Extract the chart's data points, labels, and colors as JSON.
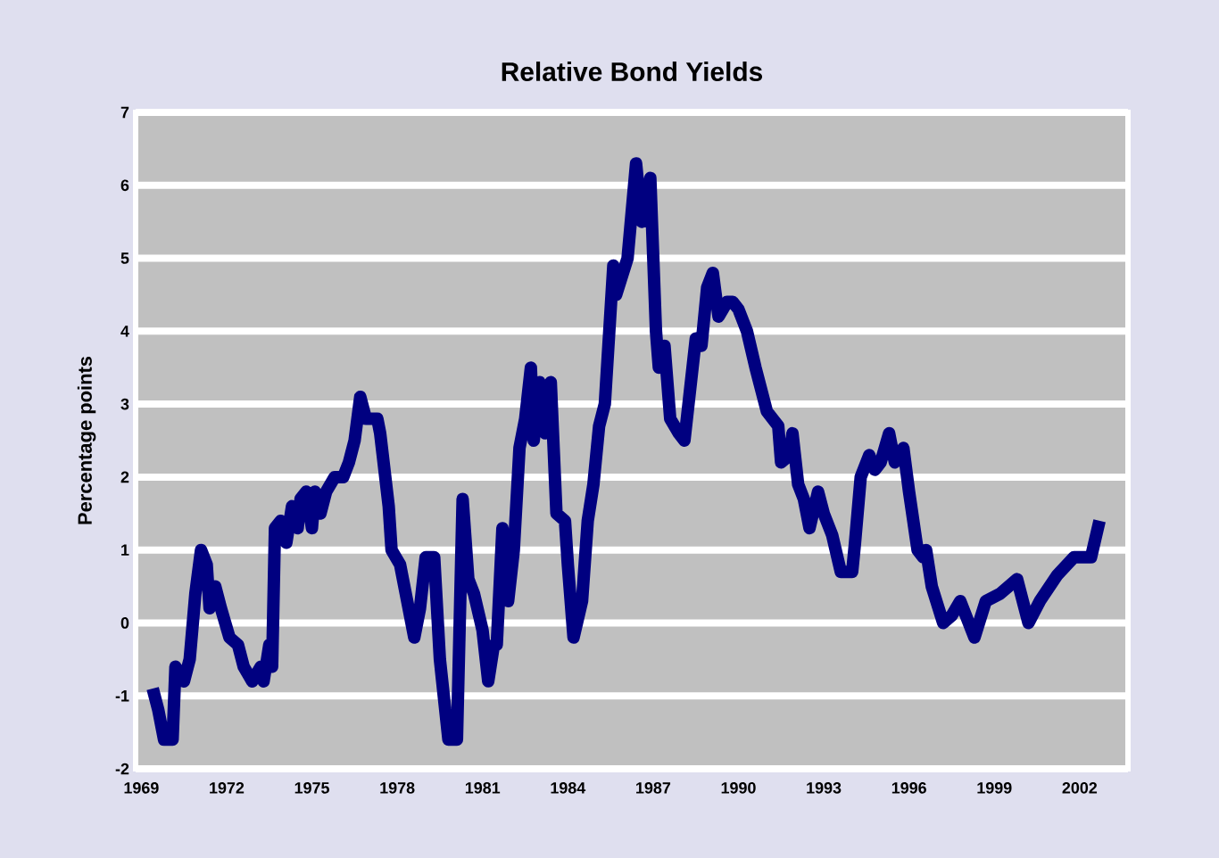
{
  "chart_data": {
    "type": "line",
    "title": "Relative Bond Yields",
    "ylabel": "Percentage points",
    "x": [
      1969.4,
      1969.6,
      1969.8,
      1970.1,
      1970.2,
      1970.5,
      1970.7,
      1970.9,
      1971.1,
      1971.3,
      1971.4,
      1971.6,
      1971.8,
      1972.1,
      1972.4,
      1972.6,
      1972.9,
      1973.2,
      1973.3,
      1973.5,
      1973.6,
      1973.7,
      1973.9,
      1974.1,
      1974.3,
      1974.5,
      1974.6,
      1974.8,
      1975.0,
      1975.1,
      1975.3,
      1975.5,
      1975.8,
      1976.1,
      1976.3,
      1976.5,
      1976.7,
      1976.9,
      1977.3,
      1977.4,
      1977.7,
      1977.8,
      1978.1,
      1978.3,
      1978.6,
      1978.8,
      1979.0,
      1979.3,
      1979.5,
      1979.8,
      1980.1,
      1980.3,
      1980.5,
      1980.7,
      1981.0,
      1981.2,
      1981.4,
      1981.5,
      1981.7,
      1981.9,
      1982.1,
      1982.3,
      1982.5,
      1982.7,
      1982.8,
      1983.0,
      1983.2,
      1983.4,
      1983.6,
      1983.9,
      1984.0,
      1984.2,
      1984.5,
      1984.7,
      1984.9,
      1985.1,
      1985.3,
      1985.6,
      1985.7,
      1986.1,
      1986.4,
      1986.6,
      1986.9,
      1987.1,
      1987.2,
      1987.4,
      1987.6,
      1987.9,
      1988.1,
      1988.3,
      1988.5,
      1988.7,
      1988.9,
      1989.1,
      1989.3,
      1989.6,
      1989.8,
      1990.0,
      1990.3,
      1990.6,
      1991.0,
      1991.4,
      1991.5,
      1991.8,
      1991.9,
      1992.1,
      1992.3,
      1992.5,
      1992.8,
      1993.0,
      1993.3,
      1993.6,
      1994.0,
      1994.1,
      1994.3,
      1994.6,
      1994.8,
      1995.0,
      1995.3,
      1995.5,
      1995.8,
      1996.0,
      1996.3,
      1996.5,
      1996.6,
      1996.8,
      1997.2,
      1997.5,
      1997.8,
      1998.3,
      1998.7,
      1999.2,
      1999.8,
      2000.2,
      2000.6,
      2001.2,
      2001.8,
      2002.4,
      2002.7
    ],
    "series": [
      {
        "color": "#000080",
        "values": [
          -0.9,
          -1.2,
          -1.6,
          -1.6,
          -0.6,
          -0.8,
          -0.5,
          0.4,
          1.0,
          0.8,
          0.2,
          0.5,
          0.2,
          -0.2,
          -0.3,
          -0.6,
          -0.8,
          -0.6,
          -0.8,
          -0.3,
          -0.6,
          1.3,
          1.4,
          1.1,
          1.6,
          1.3,
          1.7,
          1.8,
          1.3,
          1.8,
          1.5,
          1.8,
          2.0,
          2.0,
          2.2,
          2.5,
          3.1,
          2.8,
          2.8,
          2.6,
          1.6,
          1.0,
          0.8,
          0.4,
          -0.2,
          0.2,
          0.9,
          0.9,
          -0.5,
          -1.6,
          -1.6,
          1.7,
          0.6,
          0.4,
          -0.1,
          -0.8,
          -0.3,
          -0.3,
          1.3,
          0.3,
          1.0,
          2.4,
          2.8,
          3.5,
          2.5,
          3.3,
          2.6,
          3.3,
          1.5,
          1.4,
          0.8,
          -0.2,
          0.3,
          1.4,
          1.9,
          2.7,
          3.0,
          4.9,
          4.5,
          5.0,
          6.3,
          5.5,
          6.1,
          4.0,
          3.5,
          3.8,
          2.8,
          2.6,
          2.5,
          3.2,
          3.9,
          3.8,
          4.6,
          4.8,
          4.2,
          4.4,
          4.4,
          4.3,
          4.0,
          3.5,
          2.9,
          2.7,
          2.2,
          2.3,
          2.6,
          1.9,
          1.7,
          1.3,
          1.8,
          1.5,
          1.2,
          0.7,
          0.7,
          1.1,
          2.0,
          2.3,
          2.1,
          2.2,
          2.6,
          2.2,
          2.4,
          1.8,
          1.0,
          0.9,
          1.0,
          0.5,
          0.0,
          0.1,
          0.3,
          -0.2,
          0.3,
          0.4,
          0.6,
          0.0,
          0.3,
          0.65,
          0.9,
          0.9,
          1.4
        ]
      }
    ],
    "xlim": [
      1968.8,
      2003.7
    ],
    "ylim": [
      -2,
      7
    ],
    "xticks": [
      1969,
      1972,
      1975,
      1978,
      1981,
      1984,
      1987,
      1990,
      1993,
      1996,
      1999,
      2002
    ],
    "yticks": [
      -2,
      -1,
      0,
      1,
      2,
      3,
      4,
      5,
      6,
      7
    ],
    "grid": "y",
    "marker": "none",
    "line_style": "solid"
  }
}
